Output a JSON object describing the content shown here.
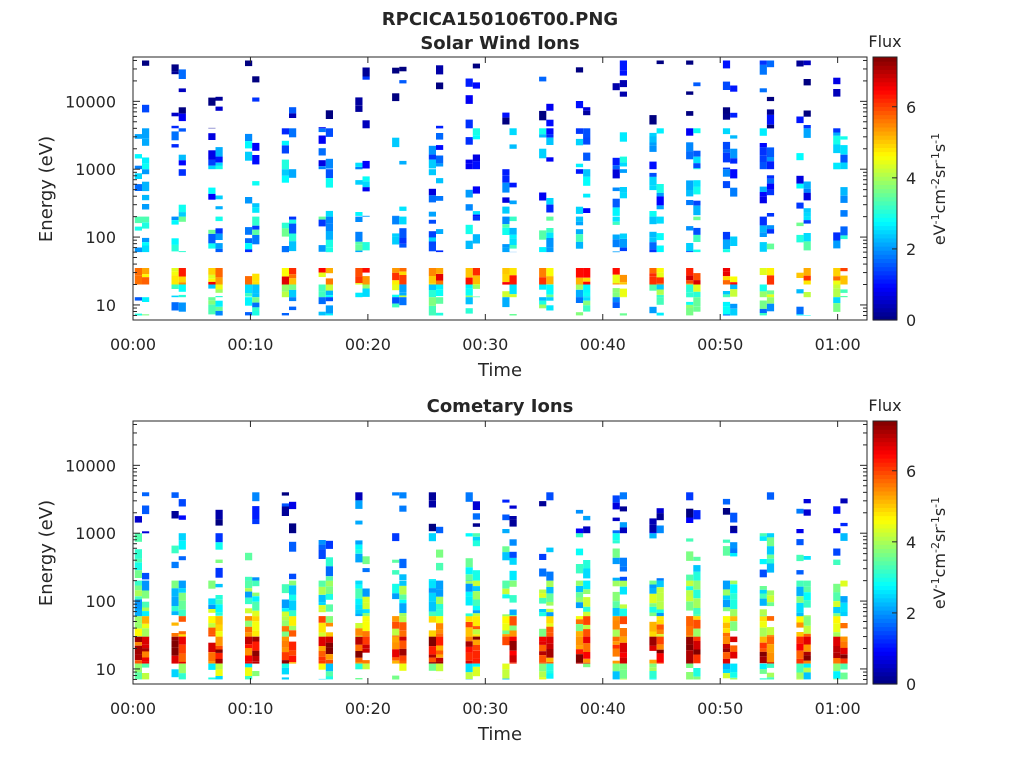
{
  "figure": {
    "title": "RPCICA150106T00.PNG"
  },
  "chart_data": [
    {
      "type": "heatmap",
      "title": "Solar Wind Ions",
      "xlabel": "Time",
      "ylabel": "Energy (eV)",
      "x_ticks": [
        "00:00",
        "00:10",
        "00:20",
        "00:30",
        "00:40",
        "00:50",
        "01:00"
      ],
      "x_tick_minutes": [
        0,
        10,
        20,
        30,
        40,
        50,
        60
      ],
      "xlim_minutes": [
        0,
        62.5
      ],
      "y_ticks": [
        "10",
        "100",
        "1000",
        "10000"
      ],
      "y_tick_values": [
        10,
        100,
        1000,
        10000
      ],
      "ylim": [
        6,
        45000
      ],
      "yscale": "log",
      "colorbar": {
        "label": "Flux",
        "unit": "eV⁻¹cm⁻²sr⁻¹s⁻¹",
        "ticks": [
          "0",
          "2",
          "4",
          "6"
        ],
        "tick_values": [
          0,
          2,
          4,
          6
        ],
        "range": [
          0,
          7.4
        ],
        "colormap": "jet"
      },
      "sweep_period_minutes": 3.13,
      "lines": [
        {
          "energy_low": 20,
          "energy_high": 35,
          "flux": 5.6,
          "density": 0.9
        },
        {
          "energy_low": 13,
          "energy_high": 20,
          "flux": 3.3,
          "density": 0.75
        },
        {
          "energy_low": 7,
          "energy_high": 13,
          "flux": 2.7,
          "density": 0.55
        },
        {
          "energy_low": 60,
          "energy_high": 200,
          "flux": 2.4,
          "density": 0.6
        },
        {
          "energy_low": 200,
          "energy_high": 1000,
          "flux": 1.8,
          "density": 0.35
        },
        {
          "energy_low": 1000,
          "energy_high": 4000,
          "flux": 1.9,
          "density": 0.45
        },
        {
          "energy_low": 4000,
          "energy_high": 40000,
          "flux": 0.6,
          "density": 0.2
        }
      ]
    },
    {
      "type": "heatmap",
      "title": "Cometary Ions",
      "xlabel": "Time",
      "ylabel": "Energy (eV)",
      "x_ticks": [
        "00:00",
        "00:10",
        "00:20",
        "00:30",
        "00:40",
        "00:50",
        "01:00"
      ],
      "x_tick_minutes": [
        0,
        10,
        20,
        30,
        40,
        50,
        60
      ],
      "xlim_minutes": [
        0,
        62.5
      ],
      "y_ticks": [
        "10",
        "100",
        "1000",
        "10000"
      ],
      "y_tick_values": [
        10,
        100,
        1000,
        10000
      ],
      "ylim": [
        6,
        45000
      ],
      "yscale": "log",
      "colorbar": {
        "label": "Flux",
        "unit": "eV⁻¹cm⁻²sr⁻¹s⁻¹",
        "ticks": [
          "0",
          "2",
          "4",
          "6"
        ],
        "tick_values": [
          0,
          2,
          4,
          6
        ],
        "range": [
          0,
          7.4
        ],
        "colormap": "jet"
      },
      "sweep_period_minutes": 3.13,
      "lines": [
        {
          "energy_low": 12,
          "energy_high": 30,
          "flux": 6.3,
          "density": 0.95
        },
        {
          "energy_low": 30,
          "energy_high": 60,
          "flux": 4.8,
          "density": 0.9
        },
        {
          "energy_low": 60,
          "energy_high": 200,
          "flux": 3.2,
          "density": 0.8
        },
        {
          "energy_low": 7,
          "energy_high": 12,
          "flux": 3.4,
          "density": 0.6
        },
        {
          "energy_low": 200,
          "energy_high": 1000,
          "flux": 2.5,
          "density": 0.3
        },
        {
          "energy_low": 1000,
          "energy_high": 4000,
          "flux": 1.0,
          "density": 0.25
        }
      ]
    }
  ]
}
